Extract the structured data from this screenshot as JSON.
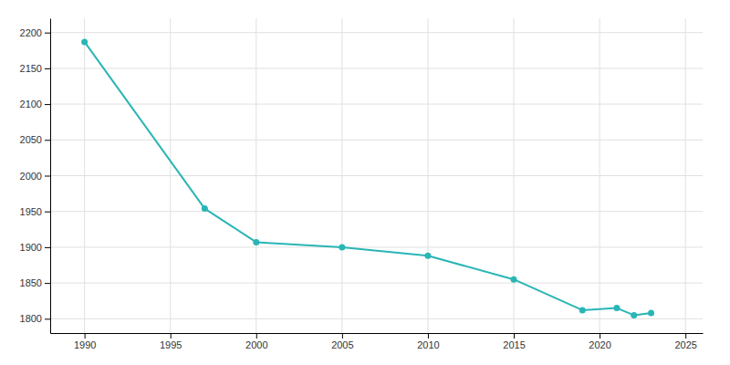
{
  "chart_data": {
    "type": "line",
    "x": [
      1990,
      1997,
      2000,
      2005,
      2010,
      2015,
      2019,
      2021,
      2022,
      2023
    ],
    "values": [
      2187,
      1954,
      1907,
      1900,
      1888,
      1855,
      1812,
      1815,
      1805,
      1808
    ],
    "color": "#2ab5b5",
    "marker": "circle",
    "xlim": [
      1988,
      2026
    ],
    "xticks": [
      1990,
      1995,
      2000,
      2005,
      2010,
      2015,
      2020,
      2025
    ],
    "ylim": [
      1780,
      2220
    ],
    "yticks": [
      1800,
      1850,
      1900,
      1950,
      2000,
      2050,
      2100,
      2150,
      2200
    ],
    "grid": true
  }
}
